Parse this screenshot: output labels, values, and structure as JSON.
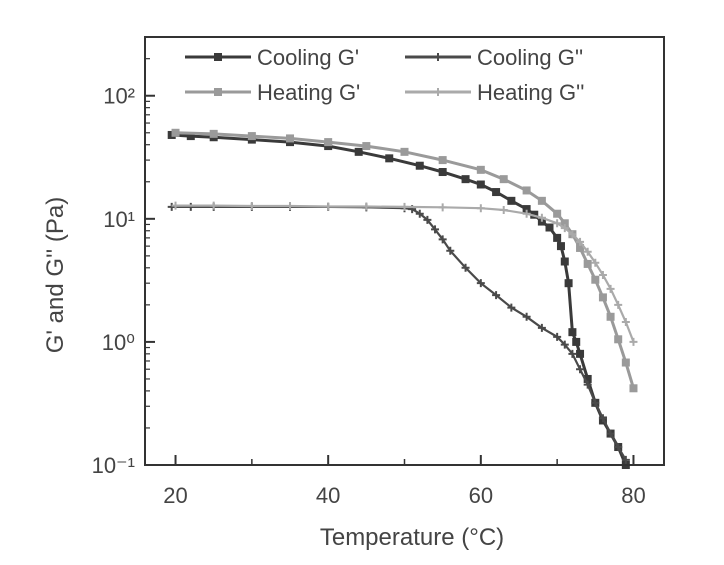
{
  "chart_data": {
    "type": "line",
    "xlabel": "Temperature (°C)",
    "ylabel": "G' and G'' (Pa)",
    "x_scale": "linear",
    "y_scale": "log",
    "xlim": [
      16,
      84
    ],
    "ylim": [
      0.1,
      300
    ],
    "x_ticks": [
      20,
      40,
      60,
      80
    ],
    "x_tick_labels": [
      "20",
      "40",
      "60",
      "80"
    ],
    "y_ticks": [
      0.1,
      1,
      10,
      100
    ],
    "y_tick_labels": [
      "10⁻¹",
      "10⁰",
      "10¹",
      "10²"
    ],
    "grid": false,
    "legend_position": "top",
    "series": [
      {
        "name": "Cooling G'",
        "color": "#3a3a3a",
        "marker": "square",
        "x": [
          19.5,
          22,
          25,
          30,
          35,
          40,
          44,
          48,
          52,
          55,
          58,
          60,
          62,
          64,
          66,
          67,
          68,
          69,
          70,
          70.5,
          71,
          71.5,
          72,
          72.5,
          73,
          74,
          75,
          76,
          77,
          78,
          79
        ],
        "y": [
          48,
          47,
          46,
          44,
          42,
          39,
          35,
          31,
          27,
          24,
          21,
          19,
          16.5,
          14,
          12,
          10.8,
          9.5,
          8.5,
          7,
          6,
          4.5,
          3,
          1.2,
          1.0,
          0.8,
          0.5,
          0.32,
          0.23,
          0.18,
          0.14,
          0.1
        ]
      },
      {
        "name": "Cooling G''",
        "color": "#4a4a4a",
        "marker": "plus",
        "x": [
          19.5,
          22,
          25,
          30,
          35,
          40,
          45,
          50,
          51,
          52,
          53,
          54,
          55,
          56,
          58,
          60,
          62,
          64,
          66,
          68,
          70,
          71,
          72,
          73,
          74,
          75,
          76,
          77,
          78,
          79
        ],
        "y": [
          12.5,
          12.5,
          12.5,
          12.5,
          12.5,
          12.5,
          12.4,
          12.2,
          12,
          11,
          9.8,
          8.2,
          6.8,
          5.5,
          4.0,
          3.0,
          2.4,
          1.9,
          1.6,
          1.3,
          1.1,
          0.95,
          0.8,
          0.6,
          0.45,
          0.32,
          0.24,
          0.18,
          0.14,
          0.11
        ]
      },
      {
        "name": "Heating G'",
        "color": "#9a9a9a",
        "marker": "square",
        "x": [
          20,
          25,
          30,
          35,
          40,
          45,
          50,
          55,
          60,
          63,
          66,
          68,
          70,
          71,
          72,
          73,
          74,
          75,
          76,
          77,
          78,
          79,
          80
        ],
        "y": [
          50,
          49,
          47,
          45,
          42,
          39,
          35,
          30,
          25,
          21,
          17,
          14,
          11,
          9.2,
          7.5,
          5.8,
          4.3,
          3.2,
          2.3,
          1.6,
          1.05,
          0.68,
          0.42
        ]
      },
      {
        "name": "Heating G''",
        "color": "#aaaaaa",
        "marker": "plus",
        "x": [
          20,
          25,
          30,
          35,
          40,
          45,
          50,
          55,
          60,
          63,
          66,
          68,
          70,
          71,
          72,
          73,
          74,
          75,
          76,
          77,
          78,
          79,
          80
        ],
        "y": [
          12.8,
          12.8,
          12.7,
          12.7,
          12.6,
          12.6,
          12.5,
          12.4,
          12.2,
          11.8,
          11,
          10.2,
          9.2,
          8.4,
          7.5,
          6.5,
          5.4,
          4.4,
          3.5,
          2.7,
          2.0,
          1.45,
          1.0
        ]
      }
    ]
  }
}
